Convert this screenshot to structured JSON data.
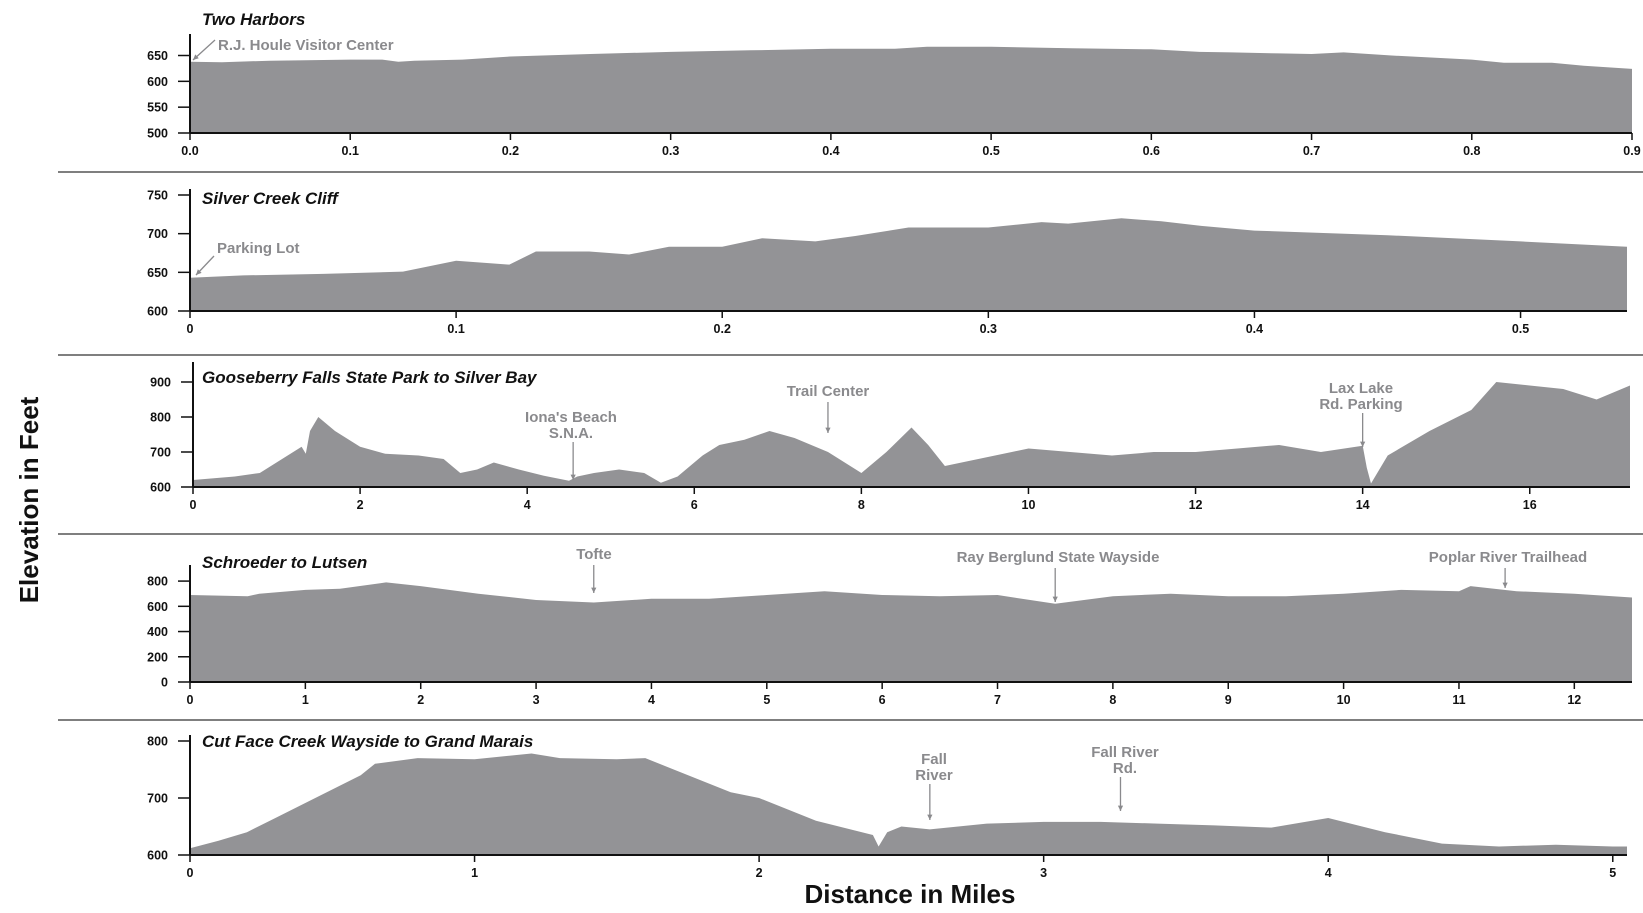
{
  "fill_color": "#939396",
  "axis_color": "#111111",
  "annotation_color": "#8a8a8d",
  "ylabel": "Elevation in Feet",
  "xlabel": "Distance in Miles",
  "chart_data": [
    {
      "type": "area",
      "title": "Two Harbors",
      "xlabel": "Distance in Miles",
      "ylabel": "Elevation in Feet",
      "xlim": [
        0,
        0.9
      ],
      "ylim": [
        500,
        680
      ],
      "xticks": [
        "0.0",
        "0.1",
        "0.2",
        "0.3",
        "0.4",
        "0.5",
        "0.6",
        "0.7",
        "0.8",
        "0.9"
      ],
      "yticks": [
        "500",
        "550",
        "600",
        "650"
      ],
      "x": [
        0,
        0.02,
        0.05,
        0.1,
        0.12,
        0.13,
        0.14,
        0.17,
        0.2,
        0.25,
        0.3,
        0.35,
        0.4,
        0.44,
        0.46,
        0.5,
        0.55,
        0.6,
        0.63,
        0.65,
        0.68,
        0.7,
        0.72,
        0.75,
        0.8,
        0.82,
        0.85,
        0.87,
        0.9
      ],
      "y": [
        638,
        637,
        640,
        642,
        642,
        638,
        640,
        642,
        648,
        653,
        657,
        660,
        663,
        663,
        667,
        667,
        664,
        662,
        657,
        656,
        654,
        653,
        656,
        650,
        642,
        636,
        636,
        630,
        624
      ],
      "annotations": [
        {
          "label": "R.J. Houle Visitor Center",
          "x": 0
        }
      ]
    },
    {
      "type": "area",
      "title": "Silver Creek Cliff",
      "xlabel": "Distance in Miles",
      "ylabel": "Elevation in Feet",
      "xlim": [
        0,
        0.54
      ],
      "ylim": [
        600,
        750
      ],
      "xticks": [
        "0",
        "0.1",
        "0.2",
        "0.3",
        "0.4",
        "0.5"
      ],
      "yticks": [
        "600",
        "650",
        "700",
        "750"
      ],
      "x": [
        0,
        0.02,
        0.05,
        0.08,
        0.1,
        0.12,
        0.13,
        0.15,
        0.165,
        0.18,
        0.2,
        0.215,
        0.235,
        0.25,
        0.27,
        0.3,
        0.32,
        0.33,
        0.35,
        0.365,
        0.38,
        0.4,
        0.45,
        0.5,
        0.54
      ],
      "y": [
        643,
        646,
        648,
        651,
        665,
        660,
        677,
        677,
        673,
        683,
        683,
        694,
        690,
        697,
        708,
        708,
        715,
        713,
        720,
        716,
        710,
        704,
        698,
        690,
        683
      ],
      "annotations": [
        {
          "label": "Parking Lot",
          "x": 0
        }
      ]
    },
    {
      "type": "area",
      "title": "Gooseberry Falls State Park to Silver Bay",
      "xlabel": "Distance in Miles",
      "ylabel": "Elevation in Feet",
      "xlim": [
        0,
        17.2
      ],
      "ylim": [
        600,
        940
      ],
      "xticks": [
        "0",
        "2",
        "4",
        "6",
        "8",
        "10",
        "12",
        "14",
        "16"
      ],
      "yticks": [
        "600",
        "700",
        "800",
        "900"
      ],
      "x": [
        0,
        0.5,
        0.8,
        1,
        1.3,
        1.35,
        1.4,
        1.5,
        1.7,
        2,
        2.3,
        2.7,
        3,
        3.2,
        3.4,
        3.6,
        3.9,
        4.2,
        4.5,
        4.6,
        4.8,
        5.1,
        5.4,
        5.6,
        5.8,
        6.1,
        6.3,
        6.6,
        6.9,
        7.2,
        7.6,
        8,
        8.3,
        8.6,
        8.8,
        9,
        9.4,
        9.8,
        10,
        10.5,
        11,
        11.5,
        12,
        12.5,
        13,
        13.5,
        14,
        14.05,
        14.1,
        14.3,
        14.8,
        15.3,
        15.6,
        16,
        16.4,
        16.8,
        17.2
      ],
      "y": [
        620,
        630,
        640,
        670,
        715,
        695,
        760,
        800,
        760,
        715,
        695,
        690,
        680,
        640,
        650,
        670,
        650,
        632,
        618,
        630,
        640,
        650,
        640,
        612,
        630,
        690,
        720,
        735,
        760,
        740,
        700,
        640,
        700,
        770,
        720,
        660,
        680,
        700,
        710,
        700,
        690,
        700,
        700,
        710,
        720,
        700,
        718,
        655,
        610,
        690,
        760,
        820,
        900,
        890,
        880,
        850,
        890
      ],
      "annotations": [
        {
          "label": "Iona's Beach S.N.A.",
          "x": 4.55
        },
        {
          "label": "Trail Center",
          "x": 7.6
        },
        {
          "label": "Lax Lake Rd. Parking",
          "x": 14.0
        }
      ]
    },
    {
      "type": "area",
      "title": "Schroeder to Lutsen",
      "xlabel": "Distance in Miles",
      "ylabel": "Elevation in Feet",
      "xlim": [
        0,
        12.5
      ],
      "ylim": [
        0,
        880
      ],
      "xticks": [
        "0",
        "1",
        "2",
        "3",
        "4",
        "5",
        "6",
        "7",
        "8",
        "9",
        "10",
        "11",
        "12"
      ],
      "yticks": [
        "0",
        "200",
        "400",
        "600",
        "800"
      ],
      "x": [
        0,
        0.5,
        0.6,
        1,
        1.3,
        1.7,
        2,
        2.5,
        3,
        3.5,
        4,
        4.5,
        5,
        5.5,
        6,
        6.5,
        7,
        7.5,
        8,
        8.5,
        9,
        9.5,
        10,
        10.5,
        11,
        11.1,
        11.5,
        12,
        12.5
      ],
      "y": [
        690,
        680,
        700,
        730,
        740,
        790,
        760,
        700,
        650,
        630,
        660,
        660,
        690,
        720,
        690,
        680,
        690,
        620,
        680,
        700,
        680,
        680,
        700,
        730,
        720,
        760,
        720,
        700,
        670
      ],
      "annotations": [
        {
          "label": "Tofte",
          "x": 3.5
        },
        {
          "label": "Ray Berglund State Wayside",
          "x": 7.5
        },
        {
          "label": "Poplar River Trailhead",
          "x": 11.4
        }
      ]
    },
    {
      "type": "area",
      "title": "Cut Face Creek Wayside to Grand Marais",
      "xlabel": "Distance in Miles",
      "ylabel": "Elevation in Feet",
      "xlim": [
        0,
        5.05
      ],
      "ylim": [
        600,
        800
      ],
      "xticks": [
        "0",
        "1",
        "2",
        "3",
        "4",
        "5"
      ],
      "yticks": [
        "600",
        "700",
        "800"
      ],
      "x": [
        0,
        0.1,
        0.2,
        0.3,
        0.4,
        0.6,
        0.65,
        0.8,
        1,
        1.2,
        1.3,
        1.5,
        1.6,
        1.7,
        1.9,
        2,
        2.2,
        2.4,
        2.42,
        2.45,
        2.5,
        2.6,
        2.8,
        3,
        3.2,
        3.4,
        3.6,
        3.8,
        4,
        4.2,
        4.4,
        4.6,
        4.8,
        5,
        5.05
      ],
      "y": [
        612,
        625,
        640,
        665,
        690,
        740,
        760,
        770,
        768,
        778,
        770,
        768,
        770,
        750,
        710,
        700,
        660,
        635,
        615,
        640,
        650,
        645,
        655,
        658,
        658,
        655,
        652,
        648,
        665,
        640,
        620,
        615,
        618,
        615,
        615
      ],
      "annotations": [
        {
          "label": "Fall River",
          "x": 2.6
        },
        {
          "label": "Fall River Rd.",
          "x": 3.27
        }
      ]
    }
  ]
}
